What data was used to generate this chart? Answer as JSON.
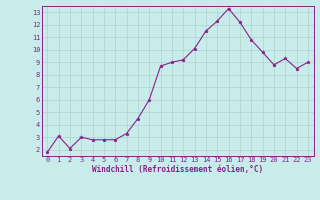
{
  "x": [
    0,
    1,
    2,
    3,
    4,
    5,
    6,
    7,
    8,
    9,
    10,
    11,
    12,
    13,
    14,
    15,
    16,
    17,
    18,
    19,
    20,
    21,
    22,
    23
  ],
  "y": [
    1.8,
    3.1,
    2.1,
    3.0,
    2.8,
    2.8,
    2.8,
    3.3,
    4.5,
    6.0,
    8.7,
    9.0,
    9.2,
    10.1,
    11.5,
    12.3,
    13.3,
    12.2,
    10.8,
    9.8,
    8.8,
    9.3,
    8.5,
    9.0
  ],
  "line_color": "#882288",
  "marker": "*",
  "marker_size": 2.5,
  "bg_color": "#c8ecea",
  "grid_color": "#aed4d2",
  "xlabel": "Windchill (Refroidissement éolien,°C)",
  "ylim": [
    1.5,
    13.5
  ],
  "xlim": [
    -0.5,
    23.5
  ],
  "yticks": [
    2,
    3,
    4,
    5,
    6,
    7,
    8,
    9,
    10,
    11,
    12,
    13
  ],
  "xticks": [
    0,
    1,
    2,
    3,
    4,
    5,
    6,
    7,
    8,
    9,
    10,
    11,
    12,
    13,
    14,
    15,
    16,
    17,
    18,
    19,
    20,
    21,
    22,
    23
  ],
  "tick_color": "#882288",
  "label_color": "#882288",
  "spine_color": "#882288",
  "tick_fontsize": 5,
  "xlabel_fontsize": 5.5
}
